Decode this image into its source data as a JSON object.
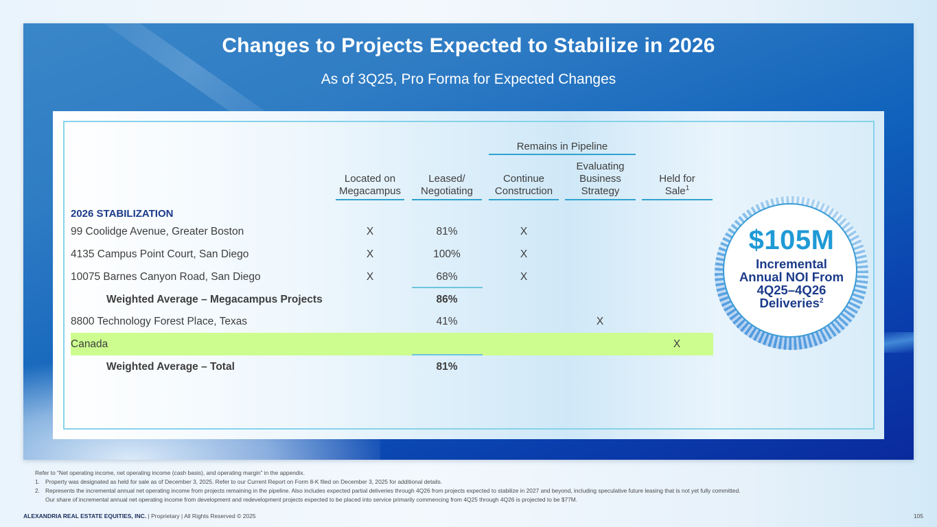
{
  "header": {
    "title": "Changes to Projects Expected to Stabilize in 2026",
    "subtitle": "As of 3Q25, Pro Forma for Expected Changes"
  },
  "table": {
    "group_header": "Remains in Pipeline",
    "columns": [
      {
        "line1": "Located on",
        "line2": "Megacampus",
        "sup": ""
      },
      {
        "line1": "Leased/",
        "line2": "Negotiating",
        "sup": ""
      },
      {
        "line1": "Continue",
        "line2": "Construction",
        "sup": ""
      },
      {
        "line0": "Evaluating",
        "line1": "Business",
        "line2": "Strategy",
        "sup": ""
      },
      {
        "line1": "Held for",
        "line2": "Sale",
        "sup": "1"
      }
    ],
    "section_title": "2026 STABILIZATION",
    "rows": [
      {
        "name": "99 Coolidge Avenue, Greater Boston",
        "megacampus": "X",
        "leased": "81%",
        "continue": "X",
        "evaluating": "",
        "held": "",
        "type": "item",
        "highlight": false
      },
      {
        "name": "4135 Campus Point Court, San Diego",
        "megacampus": "X",
        "leased": "100%",
        "continue": "X",
        "evaluating": "",
        "held": "",
        "type": "item",
        "highlight": false
      },
      {
        "name": "10075 Barnes Canyon Road, San Diego",
        "megacampus": "X",
        "leased": "68%",
        "continue": "X",
        "evaluating": "",
        "held": "",
        "type": "item",
        "highlight": false
      },
      {
        "name": "Weighted Average – Megacampus Projects",
        "megacampus": "",
        "leased": "86%",
        "continue": "",
        "evaluating": "",
        "held": "",
        "type": "subtotal",
        "highlight": false
      },
      {
        "name": "8800 Technology Forest Place, Texas",
        "megacampus": "",
        "leased": "41%",
        "continue": "",
        "evaluating": "X",
        "held": "",
        "type": "item",
        "highlight": false
      },
      {
        "name": "Canada",
        "megacampus": "",
        "leased": "",
        "continue": "",
        "evaluating": "",
        "held": "X",
        "type": "item",
        "highlight": true
      },
      {
        "name": "Weighted Average – Total",
        "megacampus": "",
        "leased": "81%",
        "continue": "",
        "evaluating": "",
        "held": "",
        "type": "subtotal",
        "highlight": false
      }
    ],
    "highlight_color": "#cdfd8f"
  },
  "badge": {
    "value": "$105M",
    "line1": "Incremental",
    "line2": "Annual NOI From",
    "line3": "4Q25–4Q26",
    "line4": "Deliveries",
    "line4_sup": "2",
    "value_color": "#1f9ad6",
    "text_color": "#1b3a8a"
  },
  "footnotes": {
    "intro": "Refer to “Net operating income, net operating income (cash basis), and operating margin” in the appendix.",
    "notes": [
      {
        "num": "1.",
        "text": "Property was designated as held for sale as of December 3, 2025. Refer to our Current Report on Form 8-K filed on December 3, 2025 for additional details."
      },
      {
        "num": "2.",
        "text": "Represents the incremental annual net operating income from projects remaining in the pipeline. Also includes expected partial deliveries through 4Q26 from projects expected to stabilize in 2027 and beyond, including speculative future leasing that is not yet fully committed."
      }
    ],
    "note2_cont": "Our share of incremental annual net operating income from development and redevelopment projects expected to be placed into service primarily commencing from 4Q25 through 4Q26 is projected to be $77M."
  },
  "footer": {
    "company": "ALEXANDRIA REAL ESTATE EQUITIES, INC.",
    "rights": " | Proprietary | All Rights Reserved © 2025",
    "page_number": "105"
  }
}
